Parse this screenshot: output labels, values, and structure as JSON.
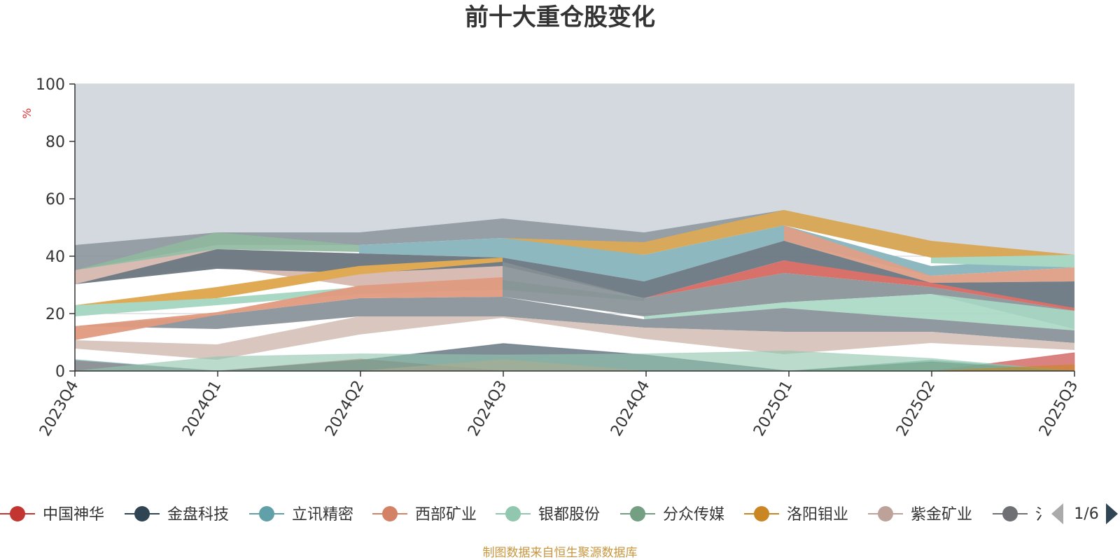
{
  "chart_data": {
    "type": "area",
    "title": "前十大重仓股变化",
    "ylabel": "%",
    "ylim": [
      0,
      100
    ],
    "yticks": [
      "0",
      "20",
      "40",
      "60",
      "80",
      "100"
    ],
    "categories": [
      "2023Q4",
      "2024Q1",
      "2024Q2",
      "2024Q3",
      "2024Q4",
      "2025Q1",
      "2025Q2",
      "2025Q3"
    ],
    "series": [
      {
        "name": "中国神华",
        "color": "#c23531",
        "values": [
          3.6,
          0,
          4.2,
          0,
          0,
          0,
          0,
          6.4
        ]
      },
      {
        "name": "金盘科技",
        "color": "#2f4554",
        "values": [
          0,
          0,
          3.8,
          9.6,
          5.6,
          0,
          0,
          0
        ]
      },
      {
        "name": "立讯精密",
        "color": "#61a0a8",
        "values": [
          4,
          0,
          0,
          0,
          0,
          0,
          3.8,
          0
        ]
      },
      {
        "name": "西部矿业",
        "color": "#d48265",
        "values": [
          0,
          0,
          0,
          4,
          0,
          0,
          0,
          0
        ]
      },
      {
        "name": "银都股份",
        "color": "#91c7ae",
        "values": [
          0,
          5,
          6,
          5.6,
          6,
          7,
          4.4,
          0
        ]
      },
      {
        "name": "分众传媒",
        "color": "#749f83",
        "values": [
          0,
          0,
          0,
          0,
          0,
          0,
          3.2,
          0
        ]
      },
      {
        "name": "洛阳钼业",
        "color": "#ca8622",
        "values": [
          0,
          0,
          0,
          0,
          0,
          0,
          0,
          2.2
        ]
      }
    ]
  },
  "legend": {
    "items": [
      {
        "label": "中国神华",
        "color": "#c23531"
      },
      {
        "label": "金盘科技",
        "color": "#2f4554"
      },
      {
        "label": "立讯精密",
        "color": "#61a0a8"
      },
      {
        "label": "西部矿业",
        "color": "#d48265"
      },
      {
        "label": "银都股份",
        "color": "#91c7ae"
      },
      {
        "label": "分众传媒",
        "color": "#749f83"
      },
      {
        "label": "洛阳钼业",
        "color": "#ca8622"
      },
      {
        "label": "紫金矿业",
        "color": "#bda29a"
      },
      {
        "label": "氵",
        "color": "#6e7074"
      }
    ],
    "page": "1/6"
  },
  "footer": {
    "source": "制图数据来自恒生聚源数据库"
  }
}
